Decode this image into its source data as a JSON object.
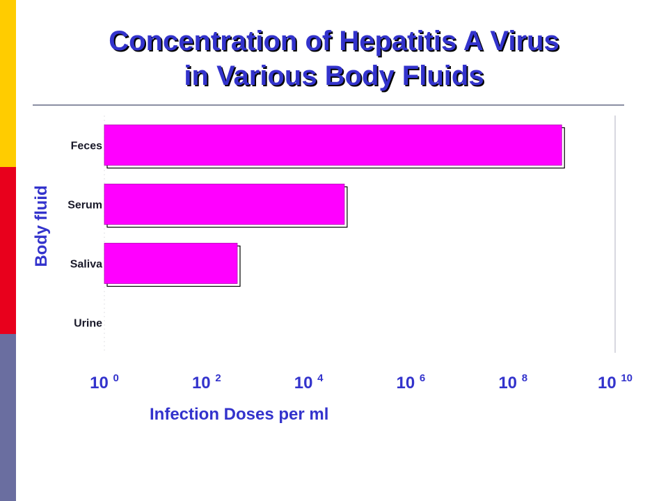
{
  "colors": {
    "sidebar": [
      "#ffcc00",
      "#e8001c",
      "#6a6ea0"
    ],
    "title": "#3333cc",
    "bar": "#ff00ff",
    "axis_text": "#3333cc",
    "category_text": "#1a1a2a"
  },
  "title_lines": [
    "Concentration of Hepatitis A Virus",
    "in Various Body Fluids"
  ],
  "chart_data": {
    "type": "bar",
    "orientation": "horizontal",
    "title": "Concentration of Hepatitis A Virus in Various Body Fluids",
    "xlabel": "Infection Doses per ml",
    "ylabel": "Body fluid",
    "x_scale": "log10",
    "xlim": [
      1,
      10000000000
    ],
    "xticks": [
      {
        "base": "10",
        "exp": "0"
      },
      {
        "base": "10",
        "exp": "2"
      },
      {
        "base": "10",
        "exp": "4"
      },
      {
        "base": "10",
        "exp": "6"
      },
      {
        "base": "10",
        "exp": "8"
      },
      {
        "base": "10",
        "exp": "10"
      }
    ],
    "xtick_values": [
      1,
      100,
      10000,
      1000000,
      100000000,
      10000000000
    ],
    "categories": [
      "Feces",
      "Serum",
      "Saliva",
      "Urine"
    ],
    "values": [
      900000000,
      50000,
      400,
      null
    ],
    "grid": false,
    "legend": "none"
  }
}
